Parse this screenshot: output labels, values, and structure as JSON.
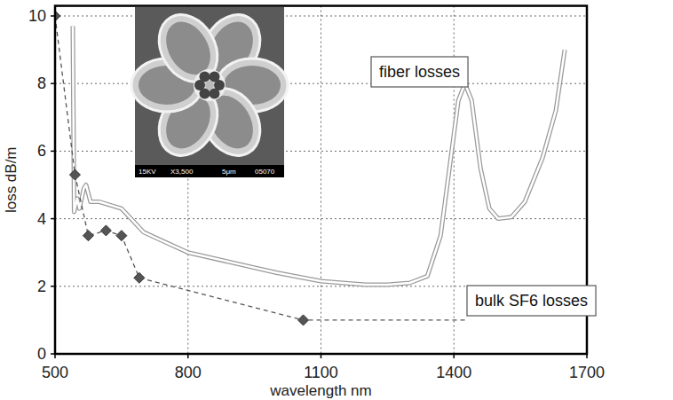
{
  "chart_data": {
    "type": "line",
    "x_label": "wavelength nm",
    "y_label": "loss dB/m",
    "xlim": [
      500,
      1700
    ],
    "xticks": [
      500,
      800,
      1100,
      1400,
      1700
    ],
    "ylim": [
      0,
      10.3
    ],
    "yticks": [
      0,
      2,
      4,
      6,
      8,
      10
    ],
    "grid": true,
    "annotations": [
      "15KV",
      "X3,500",
      "5μm",
      "05070"
    ],
    "series": [
      {
        "name": "fiber losses",
        "color": "#9a9a9a",
        "line_style": "double",
        "marker": "none",
        "x": [
          540,
          543,
          550,
          555,
          565,
          570,
          580,
          600,
          650,
          700,
          750,
          800,
          900,
          1000,
          1100,
          1200,
          1250,
          1300,
          1340,
          1370,
          1390,
          1410,
          1425,
          1440,
          1460,
          1480,
          1500,
          1530,
          1560,
          1600,
          1630,
          1650
        ],
        "values": [
          9.7,
          4.2,
          4.6,
          4.3,
          4.9,
          5.0,
          4.5,
          4.5,
          4.3,
          3.6,
          3.3,
          3.0,
          2.7,
          2.4,
          2.15,
          2.05,
          2.05,
          2.1,
          2.3,
          3.5,
          5.5,
          7.5,
          8.0,
          7.5,
          5.5,
          4.3,
          4.0,
          4.05,
          4.5,
          5.8,
          7.2,
          9.0
        ]
      },
      {
        "name": "bulk SF6 losses",
        "color": "#555555",
        "line_style": "dashed",
        "marker": "diamond",
        "x": [
          500,
          545,
          575,
          615,
          650,
          690,
          1060
        ],
        "values": [
          10.0,
          5.3,
          3.5,
          3.65,
          3.5,
          2.25,
          1.0
        ]
      }
    ]
  }
}
